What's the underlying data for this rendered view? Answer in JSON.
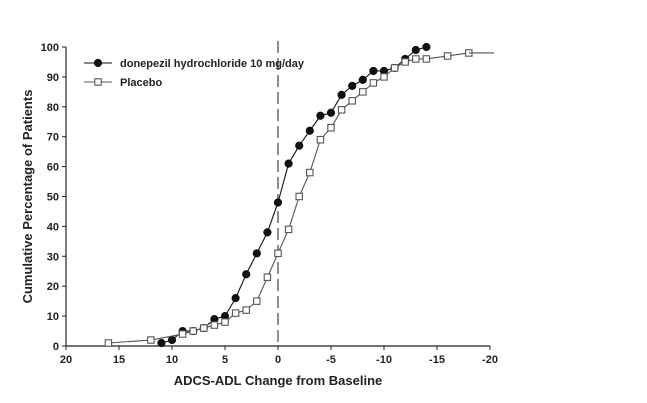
{
  "chart_data": {
    "type": "line",
    "xlabel": "ADCS-ADL Change from Baseline",
    "ylabel": "Cumulative Percentage of Patients",
    "xlim": [
      20,
      -20
    ],
    "ylim": [
      0,
      100
    ],
    "x_ticks": [
      20,
      15,
      10,
      5,
      0,
      -5,
      -10,
      -15,
      -20
    ],
    "y_ticks": [
      0,
      10,
      20,
      30,
      40,
      50,
      60,
      70,
      80,
      90,
      100
    ],
    "reference_line": {
      "x": 0,
      "style": "dashed"
    },
    "legend_position": "top-left",
    "grid": false,
    "series": [
      {
        "name": "donepezil hydrochloride 10 mg/day",
        "marker": "filled-circle",
        "color": "#111111",
        "x": [
          11,
          10,
          9,
          8,
          7,
          6,
          5,
          4,
          3,
          2,
          1,
          0,
          -1,
          -2,
          -3,
          -4,
          -5,
          -6,
          -7,
          -8,
          -9,
          -10,
          -11,
          -12,
          -13,
          -14
        ],
        "y": [
          1,
          2,
          5,
          5,
          6,
          9,
          10,
          16,
          24,
          31,
          38,
          48,
          61,
          67,
          72,
          77,
          78,
          84,
          87,
          89,
          92,
          92,
          93,
          96,
          99,
          100
        ]
      },
      {
        "name": "Placebo",
        "marker": "open-square",
        "color": "#555555",
        "x": [
          16,
          12,
          9,
          8,
          7,
          6,
          5,
          4,
          3,
          2,
          1,
          0,
          -1,
          -2,
          -3,
          -4,
          -5,
          -6,
          -7,
          -8,
          -9,
          -10,
          -11,
          -12,
          -13,
          -14,
          -16,
          -18
        ],
        "y": [
          1,
          2,
          4,
          5,
          6,
          7,
          8,
          11,
          12,
          15,
          23,
          31,
          39,
          50,
          58,
          69,
          73,
          79,
          82,
          85,
          88,
          90,
          93,
          95,
          96,
          96,
          97,
          98
        ]
      }
    ]
  }
}
